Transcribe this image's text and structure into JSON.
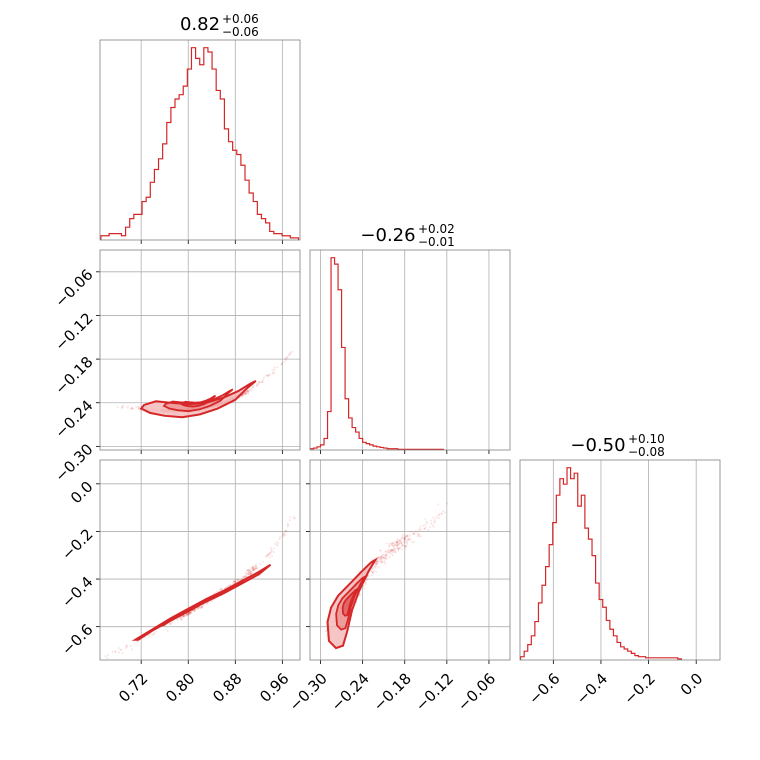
{
  "colors": {
    "accent": "#d62728",
    "fill_light": "#f4b6b7",
    "grid": "#b0b0b0",
    "frame": "#808080"
  },
  "panel_titles": [
    {
      "main": "0.82",
      "sup": "+0.06",
      "sub": "−0.06"
    },
    {
      "main": "−0.26",
      "sup": "+0.02",
      "sub": "−0.01"
    },
    {
      "main": "−0.50",
      "sup": "+0.10",
      "sub": "−0.08"
    }
  ],
  "chart_data": [
    {
      "type": "histogram",
      "panel": "p1",
      "xlim": [
        0.65,
        0.99
      ],
      "x": [
        0.655,
        0.662,
        0.669,
        0.676,
        0.683,
        0.69,
        0.697,
        0.704,
        0.711,
        0.718,
        0.725,
        0.732,
        0.739,
        0.746,
        0.753,
        0.76,
        0.767,
        0.774,
        0.781,
        0.788,
        0.795,
        0.802,
        0.809,
        0.816,
        0.823,
        0.83,
        0.837,
        0.844,
        0.851,
        0.858,
        0.865,
        0.872,
        0.879,
        0.886,
        0.893,
        0.9,
        0.907,
        0.914,
        0.921,
        0.928,
        0.935,
        0.942,
        0.949,
        0.956,
        0.963,
        0.97,
        0.977,
        0.984
      ],
      "counts": [
        2,
        2,
        3,
        3,
        3,
        2,
        6,
        10,
        12,
        12,
        18,
        20,
        27,
        33,
        38,
        45,
        55,
        62,
        66,
        68,
        72,
        80,
        90,
        85,
        82,
        90,
        88,
        80,
        70,
        66,
        52,
        46,
        42,
        40,
        35,
        28,
        22,
        18,
        12,
        10,
        8,
        4,
        3,
        3,
        2,
        2,
        1,
        1
      ]
    },
    {
      "type": "histogram",
      "panel": "p2",
      "xlim": [
        -0.315,
        -0.03
      ],
      "x": [
        -0.3125,
        -0.3075,
        -0.3025,
        -0.2975,
        -0.2925,
        -0.2875,
        -0.2825,
        -0.2775,
        -0.2725,
        -0.2675,
        -0.2625,
        -0.2575,
        -0.2525,
        -0.2475,
        -0.2425,
        -0.2375,
        -0.2325,
        -0.2275,
        -0.2225,
        -0.2175,
        -0.2125,
        -0.2075,
        -0.2025,
        -0.1975,
        -0.1925,
        -0.1875,
        -0.1825,
        -0.1775,
        -0.1725,
        -0.1675,
        -0.1625,
        -0.1575,
        -0.1525,
        -0.1475,
        -0.1425,
        -0.1375,
        -0.1325,
        -0.1275
      ],
      "counts": [
        2,
        3,
        5,
        8,
        18,
        60,
        300,
        290,
        250,
        160,
        80,
        50,
        35,
        28,
        18,
        12,
        10,
        8,
        6,
        5,
        4,
        3,
        2,
        2,
        2,
        1,
        1,
        1,
        1,
        1,
        1,
        1,
        1,
        1,
        1,
        1,
        1,
        1
      ]
    },
    {
      "type": "histogram",
      "panel": "p3",
      "xlim": [
        -0.74,
        0.1
      ],
      "x": [
        -0.73,
        -0.715,
        -0.7,
        -0.685,
        -0.67,
        -0.655,
        -0.64,
        -0.625,
        -0.61,
        -0.595,
        -0.58,
        -0.565,
        -0.55,
        -0.535,
        -0.52,
        -0.505,
        -0.49,
        -0.475,
        -0.46,
        -0.445,
        -0.43,
        -0.415,
        -0.4,
        -0.385,
        -0.37,
        -0.355,
        -0.34,
        -0.325,
        -0.31,
        -0.295,
        -0.28,
        -0.265,
        -0.25,
        -0.235,
        -0.22,
        -0.205,
        -0.19,
        -0.175,
        -0.16,
        -0.145,
        -0.13,
        -0.115,
        -0.1,
        -0.085,
        -0.07
      ],
      "counts": [
        3,
        8,
        14,
        22,
        35,
        52,
        68,
        85,
        105,
        125,
        150,
        165,
        160,
        175,
        165,
        170,
        140,
        150,
        120,
        110,
        95,
        70,
        55,
        48,
        36,
        28,
        22,
        16,
        12,
        10,
        8,
        6,
        4,
        3,
        3,
        2,
        2,
        2,
        2,
        2,
        2,
        2,
        2,
        2,
        1
      ]
    },
    {
      "type": "scatter",
      "panel": "p21",
      "xlim": [
        0.65,
        0.99
      ],
      "ylim": [
        -0.305,
        -0.03
      ],
      "yticks": [
        -0.06,
        -0.12,
        -0.18,
        -0.24,
        -0.3
      ],
      "curve_x": [
        0.67,
        0.7,
        0.72,
        0.74,
        0.76,
        0.78,
        0.8,
        0.82,
        0.84,
        0.86,
        0.88,
        0.9,
        0.92,
        0.94,
        0.96,
        0.975
      ],
      "curve_y": [
        -0.245,
        -0.247,
        -0.248,
        -0.25,
        -0.251,
        -0.251,
        -0.25,
        -0.248,
        -0.245,
        -0.24,
        -0.233,
        -0.225,
        -0.213,
        -0.2,
        -0.185,
        -0.17
      ],
      "spread": 0.01,
      "contour_x": [
        0.725,
        0.745,
        0.77,
        0.8,
        0.83,
        0.86,
        0.885,
        0.905,
        0.915,
        0.9,
        0.88,
        0.85,
        0.82,
        0.79,
        0.76,
        0.735,
        0.72
      ],
      "contour_y": [
        -0.243,
        -0.238,
        -0.24,
        -0.242,
        -0.24,
        -0.233,
        -0.224,
        -0.214,
        -0.21,
        -0.22,
        -0.236,
        -0.248,
        -0.256,
        -0.26,
        -0.258,
        -0.254,
        -0.248
      ]
    },
    {
      "type": "scatter",
      "panel": "p31",
      "xlim": [
        0.65,
        0.99
      ],
      "ylim": [
        -0.74,
        0.1
      ],
      "yticks": [
        0.0,
        -0.2,
        -0.4,
        -0.6
      ],
      "curve_x": [
        0.66,
        0.7,
        0.74,
        0.78,
        0.8,
        0.82,
        0.84,
        0.86,
        0.88,
        0.9,
        0.92,
        0.94,
        0.96,
        0.98
      ],
      "curve_y": [
        -0.73,
        -0.68,
        -0.63,
        -0.57,
        -0.54,
        -0.51,
        -0.48,
        -0.45,
        -0.42,
        -0.38,
        -0.34,
        -0.29,
        -0.22,
        -0.13
      ],
      "spread": 0.015,
      "contour_x": [
        0.715,
        0.74,
        0.77,
        0.8,
        0.83,
        0.86,
        0.89,
        0.92,
        0.94,
        0.92,
        0.89,
        0.86,
        0.83,
        0.8,
        0.77,
        0.74,
        0.71
      ],
      "contour_y": [
        -0.655,
        -0.615,
        -0.575,
        -0.535,
        -0.495,
        -0.46,
        -0.42,
        -0.38,
        -0.34,
        -0.37,
        -0.41,
        -0.45,
        -0.485,
        -0.525,
        -0.565,
        -0.61,
        -0.655
      ]
    },
    {
      "type": "scatter",
      "panel": "p32",
      "xlim": [
        -0.315,
        -0.03
      ],
      "ylim": [
        -0.74,
        0.1
      ],
      "curve_x": [
        -0.29,
        -0.28,
        -0.27,
        -0.26,
        -0.25,
        -0.24,
        -0.22,
        -0.2,
        -0.18,
        -0.16,
        -0.14,
        -0.12
      ],
      "curve_y": [
        -0.62,
        -0.58,
        -0.54,
        -0.5,
        -0.45,
        -0.4,
        -0.33,
        -0.28,
        -0.24,
        -0.2,
        -0.16,
        -0.1
      ],
      "spread": 0.03,
      "contour_x": [
        -0.29,
        -0.285,
        -0.275,
        -0.265,
        -0.255,
        -0.242,
        -0.228,
        -0.222,
        -0.232,
        -0.245,
        -0.255,
        -0.262,
        -0.268,
        -0.278,
        -0.288
      ],
      "contour_y": [
        -0.58,
        -0.52,
        -0.47,
        -0.44,
        -0.41,
        -0.37,
        -0.33,
        -0.32,
        -0.37,
        -0.45,
        -0.53,
        -0.62,
        -0.68,
        -0.69,
        -0.66
      ]
    }
  ],
  "x_ticks": {
    "col1": {
      "values": [
        0.72,
        0.8,
        0.88,
        0.96
      ],
      "labels": [
        "0.72",
        "0.80",
        "0.88",
        "0.96"
      ]
    },
    "col2": {
      "values": [
        -0.3,
        -0.24,
        -0.18,
        -0.12,
        -0.06
      ],
      "labels": [
        "−0.30",
        "−0.24",
        "−0.18",
        "−0.12",
        "−0.06"
      ]
    },
    "col3": {
      "values": [
        -0.6,
        -0.4,
        -0.2,
        0.0
      ],
      "labels": [
        "−0.6",
        "−0.4",
        "−0.2",
        "0.0"
      ]
    }
  },
  "y_ticks": {
    "row2": {
      "values": [
        -0.06,
        -0.12,
        -0.18,
        -0.24,
        -0.3
      ],
      "labels": [
        "−0.06",
        "−0.12",
        "−0.18",
        "−0.24",
        "−0.30"
      ]
    },
    "row3": {
      "values": [
        0.0,
        -0.2,
        -0.4,
        -0.6
      ],
      "labels": [
        "0.0",
        "−0.2",
        "−0.4",
        "−0.6"
      ]
    }
  }
}
